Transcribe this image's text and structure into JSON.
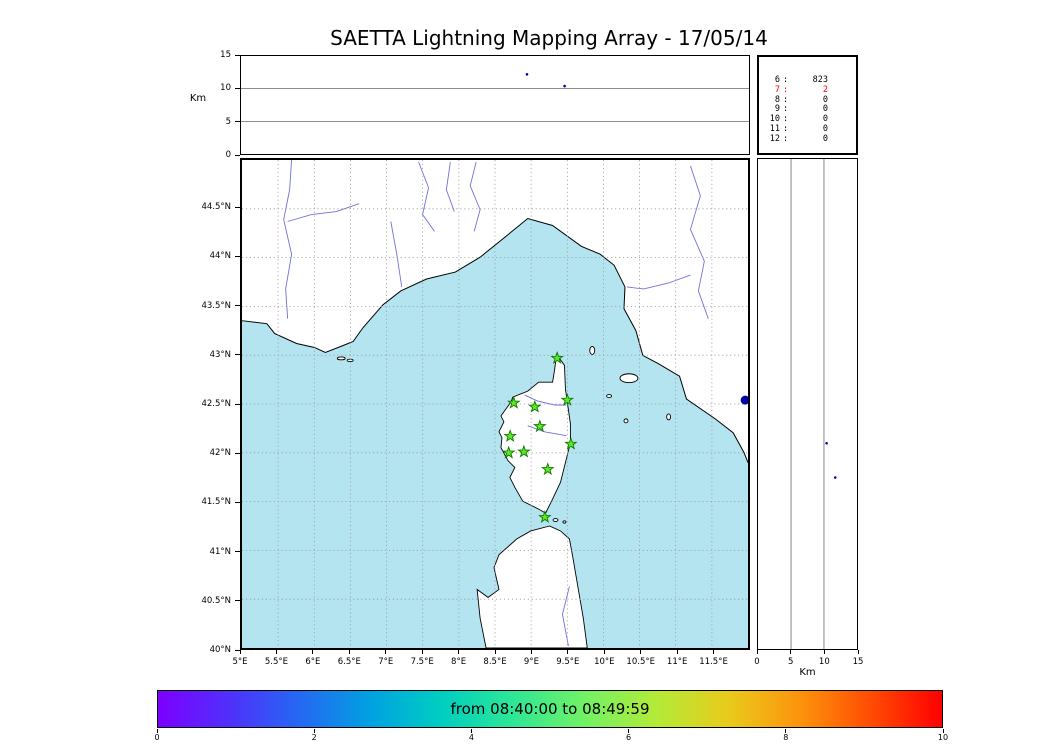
{
  "title": "SAETTA Lightning Mapping Array - 17/05/14",
  "colors": {
    "sea": "#b4e4f0",
    "land": "#ffffff",
    "coast": "#000000",
    "river": "#7070dd",
    "grid": "#999999",
    "station_fill": "#55ee22",
    "station_edge": "#117700",
    "source_dot": "#0000aa",
    "highlight": "#ff0000"
  },
  "chart_data": {
    "type": "scatter",
    "title": "SAETTA Lightning Mapping Array - 17/05/14",
    "date": "17/05/14",
    "map_panel": {
      "lon_range": [
        5,
        12
      ],
      "lat_range": [
        40,
        45
      ],
      "lon_ticks": [
        {
          "value": 5,
          "label": "5°E"
        },
        {
          "value": 5.5,
          "label": "5.5°E"
        },
        {
          "value": 6,
          "label": "6°E"
        },
        {
          "value": 6.5,
          "label": "6.5°E"
        },
        {
          "value": 7,
          "label": "7°E"
        },
        {
          "value": 7.5,
          "label": "7.5°E"
        },
        {
          "value": 8,
          "label": "8°E"
        },
        {
          "value": 8.5,
          "label": "8.5°E"
        },
        {
          "value": 9,
          "label": "9°E"
        },
        {
          "value": 9.5,
          "label": "9.5°E"
        },
        {
          "value": 10,
          "label": "10°E"
        },
        {
          "value": 10.5,
          "label": "10.5°E"
        },
        {
          "value": 11,
          "label": "11°E"
        },
        {
          "value": 11.5,
          "label": "11.5°E"
        }
      ],
      "lat_ticks": [
        {
          "value": 44.5,
          "label": "44.5°N"
        },
        {
          "value": 44,
          "label": "44°N"
        },
        {
          "value": 43.5,
          "label": "43.5°N"
        },
        {
          "value": 43,
          "label": "43°N"
        },
        {
          "value": 42.5,
          "label": "42.5°N"
        },
        {
          "value": 42,
          "label": "42°N"
        },
        {
          "value": 41.5,
          "label": "41.5°N"
        },
        {
          "value": 41,
          "label": "41°N"
        },
        {
          "value": 40.5,
          "label": "40.5°N"
        },
        {
          "value": 40,
          "label": "40°N"
        }
      ],
      "stations_lonlat": [
        [
          9.36,
          42.97
        ],
        [
          8.76,
          42.51
        ],
        [
          9.05,
          42.47
        ],
        [
          9.5,
          42.54
        ],
        [
          9.12,
          42.27
        ],
        [
          8.71,
          42.17
        ],
        [
          9.55,
          42.09
        ],
        [
          8.69,
          42.0
        ],
        [
          8.9,
          42.01
        ],
        [
          9.23,
          41.83
        ],
        [
          9.19,
          41.34
        ]
      ],
      "source_points": [
        {
          "lon": 11.96,
          "lat": 42.54,
          "size": "large"
        }
      ]
    },
    "alt_lon_panel": {
      "ylabel": "Km",
      "alt_range_km": [
        0,
        15
      ],
      "yticks": [
        {
          "value": 0,
          "label": "0"
        },
        {
          "value": 5,
          "label": "5"
        },
        {
          "value": 10,
          "label": "10"
        },
        {
          "value": 15,
          "label": "15"
        }
      ],
      "points": [
        {
          "lon": 8.94,
          "alt_km": 12.2
        },
        {
          "lon": 9.46,
          "alt_km": 10.4
        }
      ]
    },
    "alt_lat_panel": {
      "xlabel": "Km",
      "alt_range_km": [
        0,
        15
      ],
      "xticks": [
        {
          "value": 0,
          "label": "0"
        },
        {
          "value": 5,
          "label": "5"
        },
        {
          "value": 10,
          "label": "10"
        },
        {
          "value": 15,
          "label": "15"
        }
      ],
      "points": [
        {
          "lat": 42.1,
          "alt_km": 10.4
        },
        {
          "lat": 41.75,
          "alt_km": 11.7
        }
      ]
    },
    "station_count_table": {
      "rows": [
        {
          "stations": "6",
          "count": "823",
          "highlight": false
        },
        {
          "stations": "7",
          "count": "2",
          "highlight": true
        },
        {
          "stations": "8",
          "count": "0",
          "highlight": false
        },
        {
          "stations": "9",
          "count": "0",
          "highlight": false
        },
        {
          "stations": "10",
          "count": "0",
          "highlight": false
        },
        {
          "stations": "11",
          "count": "0",
          "highlight": false
        },
        {
          "stations": "12",
          "count": "0",
          "highlight": false
        }
      ]
    },
    "colorbar": {
      "label": "from 08:40:00 to 08:49:59",
      "range": [
        0,
        10
      ],
      "ticks": [
        {
          "value": 0,
          "label": "0"
        },
        {
          "value": 2,
          "label": "2"
        },
        {
          "value": 4,
          "label": "4"
        },
        {
          "value": 6,
          "label": "6"
        },
        {
          "value": 8,
          "label": "8"
        },
        {
          "value": 10,
          "label": "10"
        }
      ],
      "gradient": [
        "#7c00ff",
        "#5030fb",
        "#2469f2",
        "#00a2e0",
        "#00cfc0",
        "#2fe796",
        "#72f263",
        "#b4ea38",
        "#e9cb1c",
        "#fc940c",
        "#ff4c03",
        "#ff0000"
      ]
    }
  }
}
